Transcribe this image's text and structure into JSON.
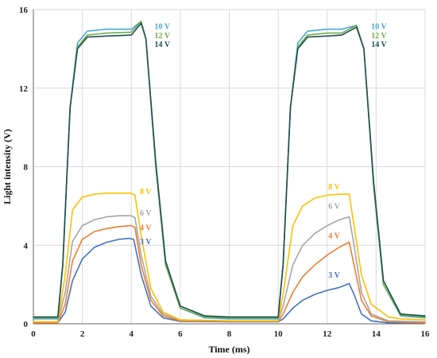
{
  "chart_data": {
    "type": "line",
    "xlabel": "Time (ms)",
    "ylabel": "Light intensity (V)",
    "xlim": [
      0,
      16
    ],
    "ylim": [
      0,
      16
    ],
    "xticks": [
      "0",
      "2",
      "4",
      "6",
      "8",
      "10",
      "12",
      "14",
      "16"
    ],
    "yticks": [
      "0",
      "4",
      "8",
      "12",
      "16"
    ],
    "grid": true,
    "series": [
      {
        "name": "3 V",
        "color": "#4472c4",
        "points": [
          [
            0,
            0.05
          ],
          [
            1,
            0.05
          ],
          [
            1.3,
            0.6
          ],
          [
            1.6,
            2.2
          ],
          [
            2,
            3.3
          ],
          [
            2.5,
            3.9
          ],
          [
            3,
            4.15
          ],
          [
            3.5,
            4.3
          ],
          [
            3.9,
            4.35
          ],
          [
            4.1,
            4.3
          ],
          [
            4.4,
            2.5
          ],
          [
            4.8,
            0.9
          ],
          [
            5.3,
            0.3
          ],
          [
            6,
            0.12
          ],
          [
            8,
            0.1
          ],
          [
            10,
            0.1
          ],
          [
            10.2,
            0.25
          ],
          [
            10.6,
            0.8
          ],
          [
            11,
            1.2
          ],
          [
            11.5,
            1.5
          ],
          [
            12,
            1.7
          ],
          [
            12.5,
            1.85
          ],
          [
            12.9,
            2.05
          ],
          [
            13.1,
            1.5
          ],
          [
            13.4,
            0.5
          ],
          [
            13.8,
            0.15
          ],
          [
            14.5,
            0.05
          ],
          [
            16,
            0.05
          ]
        ]
      },
      {
        "name": "4 V",
        "color": "#ed7d31",
        "points": [
          [
            0,
            0.05
          ],
          [
            1,
            0.05
          ],
          [
            1.3,
            1.0
          ],
          [
            1.6,
            3.2
          ],
          [
            2,
            4.3
          ],
          [
            2.5,
            4.7
          ],
          [
            3,
            4.85
          ],
          [
            3.5,
            4.95
          ],
          [
            4,
            5.0
          ],
          [
            4.15,
            4.9
          ],
          [
            4.4,
            3.0
          ],
          [
            4.8,
            1.2
          ],
          [
            5.3,
            0.4
          ],
          [
            6,
            0.15
          ],
          [
            8,
            0.12
          ],
          [
            10,
            0.12
          ],
          [
            10.2,
            0.5
          ],
          [
            10.6,
            1.6
          ],
          [
            11,
            2.4
          ],
          [
            11.5,
            3.0
          ],
          [
            12,
            3.5
          ],
          [
            12.5,
            3.9
          ],
          [
            12.9,
            4.15
          ],
          [
            13.1,
            3.0
          ],
          [
            13.4,
            1.2
          ],
          [
            13.8,
            0.4
          ],
          [
            14.5,
            0.1
          ],
          [
            16,
            0.05
          ]
        ]
      },
      {
        "name": "6 V",
        "color": "#a5a5a5",
        "points": [
          [
            0,
            0.1
          ],
          [
            1,
            0.1
          ],
          [
            1.3,
            1.6
          ],
          [
            1.6,
            4.2
          ],
          [
            2,
            5.0
          ],
          [
            2.5,
            5.3
          ],
          [
            3,
            5.45
          ],
          [
            3.5,
            5.5
          ],
          [
            4,
            5.5
          ],
          [
            4.15,
            5.4
          ],
          [
            4.4,
            3.5
          ],
          [
            4.8,
            1.4
          ],
          [
            5.3,
            0.5
          ],
          [
            6,
            0.2
          ],
          [
            8,
            0.15
          ],
          [
            10,
            0.15
          ],
          [
            10.2,
            0.9
          ],
          [
            10.6,
            3.0
          ],
          [
            11,
            4.0
          ],
          [
            11.5,
            4.6
          ],
          [
            12,
            5.0
          ],
          [
            12.5,
            5.3
          ],
          [
            12.9,
            5.45
          ],
          [
            13.1,
            4.0
          ],
          [
            13.4,
            1.6
          ],
          [
            13.8,
            0.5
          ],
          [
            14.5,
            0.15
          ],
          [
            16,
            0.1
          ]
        ]
      },
      {
        "name": "8 V",
        "color": "#ffc000",
        "points": [
          [
            0,
            0.1
          ],
          [
            1,
            0.1
          ],
          [
            1.3,
            2.5
          ],
          [
            1.6,
            5.8
          ],
          [
            2,
            6.45
          ],
          [
            2.5,
            6.6
          ],
          [
            3,
            6.65
          ],
          [
            3.5,
            6.65
          ],
          [
            4,
            6.65
          ],
          [
            4.15,
            6.55
          ],
          [
            4.4,
            4.5
          ],
          [
            4.8,
            1.8
          ],
          [
            5.3,
            0.6
          ],
          [
            6,
            0.2
          ],
          [
            8,
            0.15
          ],
          [
            10,
            0.15
          ],
          [
            10.2,
            1.5
          ],
          [
            10.6,
            5.0
          ],
          [
            11,
            6.0
          ],
          [
            11.5,
            6.4
          ],
          [
            12,
            6.55
          ],
          [
            12.5,
            6.6
          ],
          [
            12.9,
            6.6
          ],
          [
            13.1,
            5.0
          ],
          [
            13.4,
            2.5
          ],
          [
            13.8,
            1.0
          ],
          [
            14.5,
            0.35
          ],
          [
            15,
            0.25
          ],
          [
            16,
            0.2
          ]
        ]
      },
      {
        "name": "10 V",
        "color": "#4aa8d8",
        "points": [
          [
            0,
            0.25
          ],
          [
            1,
            0.25
          ],
          [
            1.2,
            3.0
          ],
          [
            1.5,
            11.0
          ],
          [
            1.8,
            14.3
          ],
          [
            2.2,
            14.9
          ],
          [
            3,
            15.0
          ],
          [
            4,
            15.0
          ],
          [
            4.4,
            15.4
          ],
          [
            4.6,
            14.5
          ],
          [
            5,
            8.0
          ],
          [
            5.4,
            3.0
          ],
          [
            6,
            0.8
          ],
          [
            7,
            0.3
          ],
          [
            8,
            0.25
          ],
          [
            10,
            0.25
          ],
          [
            10.2,
            3.0
          ],
          [
            10.5,
            11.0
          ],
          [
            10.8,
            14.3
          ],
          [
            11.2,
            14.9
          ],
          [
            12,
            15.0
          ],
          [
            12.6,
            15.0
          ],
          [
            13.2,
            15.2
          ],
          [
            13.5,
            14.0
          ],
          [
            13.9,
            7.0
          ],
          [
            14.3,
            2.0
          ],
          [
            15,
            0.4
          ],
          [
            16,
            0.3
          ]
        ]
      },
      {
        "name": "12 V",
        "color": "#70ad47",
        "points": [
          [
            0,
            0.3
          ],
          [
            1,
            0.3
          ],
          [
            1.2,
            3.0
          ],
          [
            1.5,
            11.0
          ],
          [
            1.8,
            14.1
          ],
          [
            2.2,
            14.7
          ],
          [
            3,
            14.8
          ],
          [
            4,
            14.85
          ],
          [
            4.4,
            15.4
          ],
          [
            4.6,
            14.5
          ],
          [
            5,
            8.0
          ],
          [
            5.4,
            3.0
          ],
          [
            6,
            0.8
          ],
          [
            7,
            0.35
          ],
          [
            8,
            0.3
          ],
          [
            10,
            0.3
          ],
          [
            10.2,
            3.0
          ],
          [
            10.5,
            11.0
          ],
          [
            10.8,
            14.1
          ],
          [
            11.2,
            14.7
          ],
          [
            12,
            14.8
          ],
          [
            12.6,
            14.8
          ],
          [
            13.2,
            15.2
          ],
          [
            13.5,
            14.0
          ],
          [
            13.9,
            7.0
          ],
          [
            14.3,
            2.0
          ],
          [
            15,
            0.45
          ],
          [
            16,
            0.35
          ]
        ]
      },
      {
        "name": "14 V",
        "color": "#1f4e52",
        "points": [
          [
            0,
            0.35
          ],
          [
            1,
            0.35
          ],
          [
            1.2,
            3.0
          ],
          [
            1.5,
            11.0
          ],
          [
            1.8,
            14.0
          ],
          [
            2.2,
            14.6
          ],
          [
            3,
            14.65
          ],
          [
            4,
            14.7
          ],
          [
            4.4,
            15.3
          ],
          [
            4.6,
            14.5
          ],
          [
            5,
            8.2
          ],
          [
            5.4,
            3.2
          ],
          [
            6,
            0.9
          ],
          [
            7,
            0.4
          ],
          [
            8,
            0.35
          ],
          [
            10,
            0.35
          ],
          [
            10.2,
            3.0
          ],
          [
            10.5,
            11.0
          ],
          [
            10.8,
            14.0
          ],
          [
            11.2,
            14.6
          ],
          [
            12,
            14.65
          ],
          [
            12.6,
            14.7
          ],
          [
            13.2,
            15.1
          ],
          [
            13.5,
            14.0
          ],
          [
            13.9,
            7.2
          ],
          [
            14.3,
            2.2
          ],
          [
            15,
            0.5
          ],
          [
            16,
            0.4
          ]
        ]
      }
    ]
  }
}
